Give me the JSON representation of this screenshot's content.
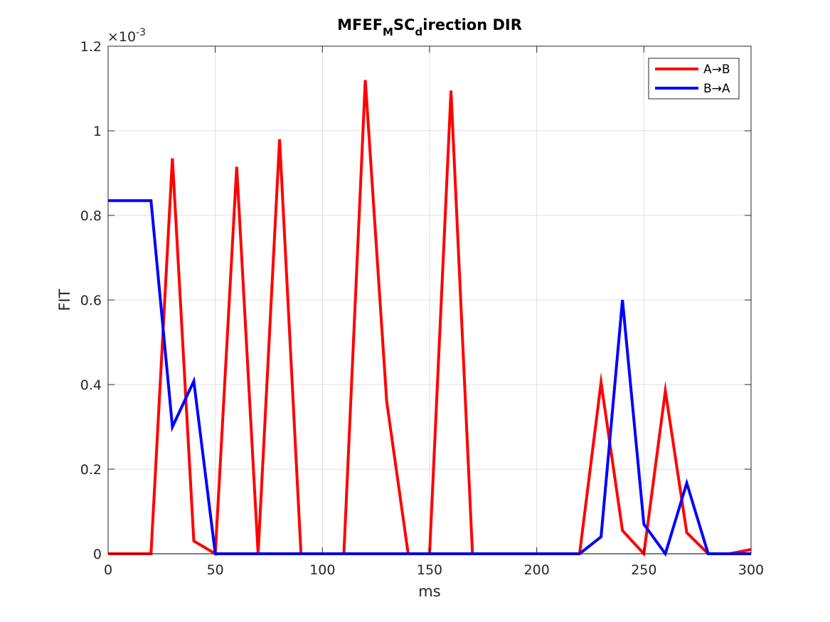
{
  "chart_data": {
    "type": "line",
    "title": {
      "part1": "MFEF",
      "sub1": "M",
      "part2": "SC",
      "sub2": "d",
      "part3": "irection DIR"
    },
    "xlabel": "ms",
    "ylabel": "FIT",
    "y_exponent_label": "×10",
    "y_exponent_power": "-3",
    "xlim": [
      0,
      300
    ],
    "ylim": [
      0,
      0.0012
    ],
    "x_ticks": [
      0,
      50,
      100,
      150,
      200,
      250,
      300
    ],
    "x_tick_labels": [
      "0",
      "50",
      "100",
      "150",
      "200",
      "250",
      "300"
    ],
    "y_ticks": [
      0,
      0.0002,
      0.0004,
      0.0006,
      0.0008,
      0.001,
      0.0012
    ],
    "y_tick_labels": [
      "0",
      "0.2",
      "0.4",
      "0.6",
      "0.8",
      "1",
      "1.2"
    ],
    "grid": true,
    "legend_position": "top-right",
    "x": [
      0,
      10,
      20,
      30,
      40,
      50,
      60,
      70,
      80,
      90,
      100,
      110,
      120,
      130,
      140,
      150,
      160,
      170,
      180,
      190,
      200,
      210,
      220,
      230,
      240,
      250,
      260,
      270,
      280,
      290,
      300
    ],
    "series": [
      {
        "name": "A→B",
        "color": "#ff0000",
        "values": [
          0,
          0,
          0,
          0.000935,
          3e-05,
          0,
          0.000915,
          0,
          0.00098,
          0,
          0,
          0,
          0.00112,
          0.00036,
          0,
          0,
          0.001095,
          0,
          0,
          0,
          0,
          0,
          0,
          0.000405,
          5.5e-05,
          0,
          0.000385,
          5e-05,
          0,
          0,
          1e-05
        ]
      },
      {
        "name": "B→A",
        "color": "#0000ff",
        "values": [
          0.000835,
          0.000835,
          0.000835,
          0.0003,
          0.000408,
          0,
          0,
          0,
          0,
          0,
          0,
          0,
          0,
          0,
          0,
          0,
          0,
          0,
          0,
          0,
          0,
          0,
          0,
          4e-05,
          0.0006,
          7e-05,
          0,
          0.000167,
          0,
          0,
          0
        ]
      }
    ],
    "baseline_color": "#0072bd"
  }
}
